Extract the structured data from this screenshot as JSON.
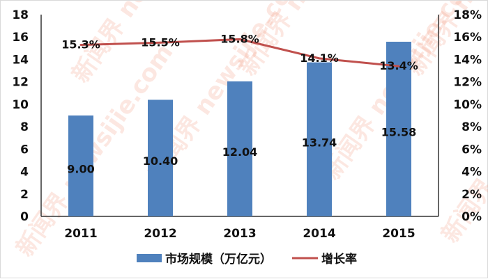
{
  "chart_data": {
    "type": "bar+line",
    "categories": [
      "2011",
      "2012",
      "2013",
      "2014",
      "2015"
    ],
    "series": [
      {
        "name": "市场规模（万亿元）",
        "type": "bar",
        "axis": "left",
        "values": [
          9.0,
          10.4,
          12.04,
          13.74,
          15.58
        ],
        "labels": [
          "9.00",
          "10.40",
          "12.04",
          "13.74",
          "15.58"
        ],
        "color": "#4f81bd"
      },
      {
        "name": "增长率",
        "type": "line",
        "axis": "right",
        "values": [
          15.3,
          15.5,
          15.8,
          14.1,
          13.4
        ],
        "labels": [
          "15.3%",
          "15.5%",
          "15.8%",
          "14.1%",
          "13.4%"
        ],
        "color": "#c0504d"
      }
    ],
    "left_axis": {
      "ylim": [
        0,
        18
      ],
      "ticks": [
        "0",
        "2",
        "4",
        "6",
        "8",
        "10",
        "12",
        "14",
        "16",
        "18"
      ]
    },
    "right_axis": {
      "ylim": [
        0,
        18
      ],
      "ticks": [
        "0%",
        "2%",
        "4%",
        "6%",
        "8%",
        "10%",
        "12%",
        "14%",
        "16%",
        "18%"
      ]
    },
    "grid": false,
    "legend": "bottom"
  },
  "watermark": "新闻界 newsijie.com"
}
